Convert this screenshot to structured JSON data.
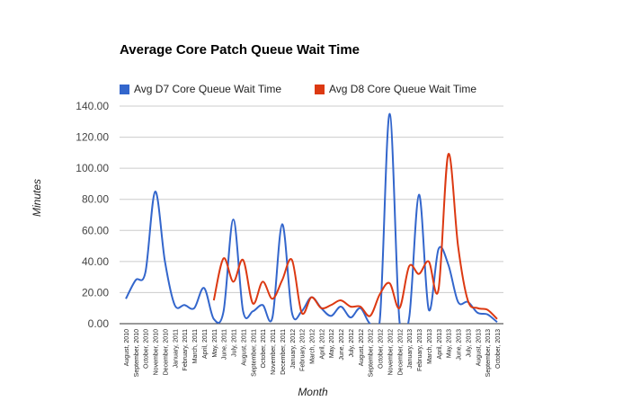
{
  "chart_data": {
    "type": "line",
    "title": "Average Core Patch Queue Wait Time",
    "xlabel": "Month",
    "ylabel": "Minutes",
    "ylim": [
      0,
      140
    ],
    "yticks": [
      "0.00",
      "20.00",
      "40.00",
      "60.00",
      "80.00",
      "100.00",
      "120.00",
      "140.00"
    ],
    "grid": true,
    "legend_position": "top",
    "categories": [
      "August, 2010",
      "September, 2010",
      "October, 2010",
      "November, 2010",
      "December, 2010",
      "January, 2011",
      "February, 2011",
      "March, 2011",
      "April, 2011",
      "May, 2011",
      "June, 2011",
      "July, 2011",
      "August, 2011",
      "September, 2011",
      "October, 2011",
      "November, 2011",
      "December, 2011",
      "January, 2012",
      "February, 2012",
      "March, 2012",
      "April, 2012",
      "May, 2012",
      "June, 2012",
      "July, 2012",
      "August, 2012",
      "September, 2012",
      "October, 2012",
      "November, 2012",
      "December, 2012",
      "January, 2013",
      "February, 2013",
      "March, 2013",
      "April, 2013",
      "May, 2013",
      "June, 2013",
      "July, 2013",
      "August, 2013",
      "September, 2013",
      "October, 2013"
    ],
    "series": [
      {
        "name": "Avg D7 Core Queue Wait Time",
        "color": "#3366cc",
        "values": [
          16,
          28,
          33,
          85,
          40,
          12,
          12,
          10,
          23,
          3,
          8,
          67,
          8,
          8,
          12,
          4,
          64,
          7,
          8,
          17,
          10,
          5,
          11,
          4,
          10,
          0,
          3,
          135,
          2,
          4,
          83,
          9,
          48,
          38,
          14,
          14,
          7,
          6,
          1
        ]
      },
      {
        "name": "Avg D8 Core Queue Wait Time",
        "color": "#dc3912",
        "values": [
          null,
          null,
          null,
          null,
          null,
          null,
          null,
          null,
          null,
          15,
          42,
          27,
          41,
          13,
          27,
          16,
          28,
          41,
          7,
          17,
          10,
          12,
          15,
          11,
          11,
          5,
          19,
          26,
          10,
          37,
          32,
          40,
          22,
          109,
          50,
          15,
          10,
          9,
          3
        ]
      }
    ]
  }
}
